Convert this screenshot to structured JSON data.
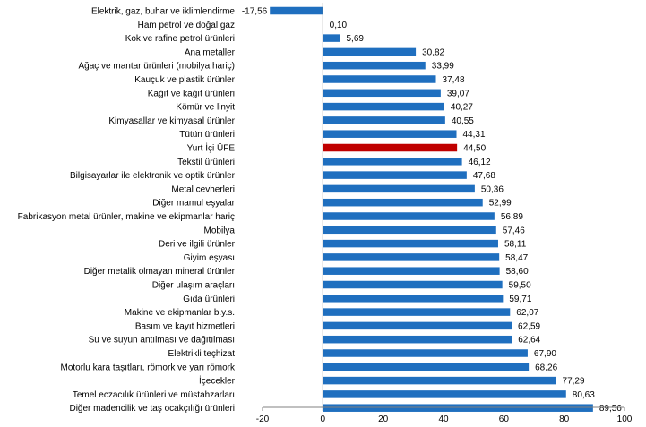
{
  "chart_data": {
    "type": "bar",
    "orientation": "horizontal",
    "categories": [
      "Elektrik, gaz, buhar ve iklimlendirme",
      "Ham petrol ve doğal gaz",
      "Kok ve rafine petrol ürünleri",
      "Ana metaller",
      "Ağaç ve mantar ürünleri (mobilya hariç)",
      "Kauçuk ve plastik ürünler",
      "Kağıt ve kağıt ürünleri",
      "Kömür ve linyit",
      "Kimyasallar ve kimyasal ürünler",
      "Tütün ürünleri",
      "Yurt İçi ÜFE",
      "Tekstil ürünleri",
      "Bilgisayarlar ile elektronik ve optik ürünler",
      "Metal cevherleri",
      "Diğer mamul eşyalar",
      "Fabrikasyon metal ürünler, makine ve ekipmanlar hariç",
      "Mobilya",
      "Deri ve ilgili ürünler",
      "Giyim eşyası",
      "Diğer metalik olmayan mineral ürünler",
      "Diğer ulaşım araçları",
      "Gıda ürünleri",
      "Makine ve ekipmanlar b.y.s.",
      "Basım ve kayıt hizmetleri",
      "Su ve suyun antılması ve dağıtılması",
      "Elektrikli teçhizat",
      "Motorlu kara taşıtları, römork ve yarı römork",
      "İçecekler",
      "Temel eczacılık ürünleri ve müstahzarları",
      "Diğer madencilik ve taş ocakçılığı ürünleri"
    ],
    "values": [
      -17.56,
      0.1,
      5.69,
      30.82,
      33.99,
      37.48,
      39.07,
      40.27,
      40.55,
      44.31,
      44.5,
      46.12,
      47.68,
      50.36,
      52.99,
      56.89,
      57.46,
      58.11,
      58.47,
      58.6,
      59.5,
      59.71,
      62.07,
      62.59,
      62.64,
      67.9,
      68.26,
      77.29,
      80.63,
      89.56
    ],
    "value_labels": [
      "-17,56",
      "0,10",
      "5,69",
      "30,82",
      "33,99",
      "37,48",
      "39,07",
      "40,27",
      "40,55",
      "44,31",
      "44,50",
      "46,12",
      "47,68",
      "50,36",
      "52,99",
      "56,89",
      "57,46",
      "58,11",
      "58,47",
      "58,60",
      "59,50",
      "59,71",
      "62,07",
      "62,59",
      "62,64",
      "67,90",
      "68,26",
      "77,29",
      "80,63",
      "89,56"
    ],
    "highlight_category": "Yurt İçi ÜFE",
    "xlim": [
      -20,
      100
    ],
    "xticks": [
      -20,
      0,
      20,
      40,
      60,
      80,
      100
    ],
    "xtick_labels": [
      "-20",
      "0",
      "20",
      "40",
      "60",
      "80",
      "100"
    ],
    "title": "",
    "xlabel": "",
    "ylabel": "",
    "grid": false,
    "legend": "none",
    "colors": {
      "bar": "#1f6fbf",
      "highlight": "#c00000",
      "axis": "#808080"
    }
  }
}
